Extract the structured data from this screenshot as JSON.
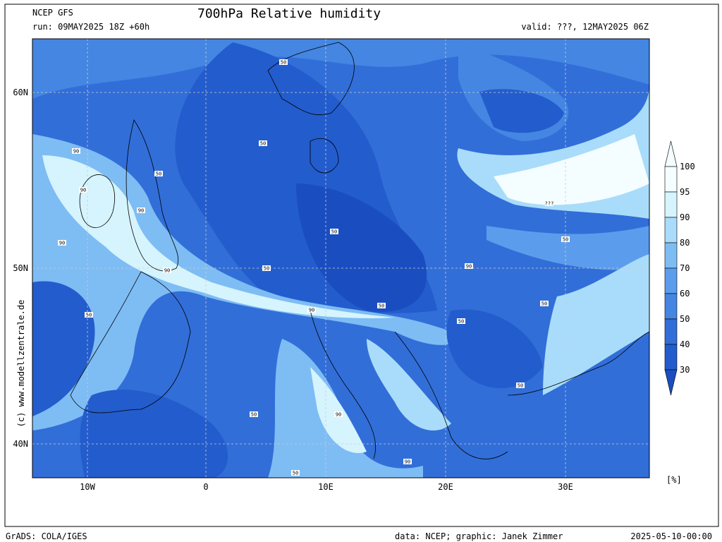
{
  "header": {
    "model": "NCEP GFS",
    "title": "700hPa Relative humidity",
    "run": "run: 09MAY2025 18Z +60h",
    "valid": "valid: ???, 12MAY2025 06Z"
  },
  "map": {
    "lat_labels": [
      "60N",
      "50N",
      "40N"
    ],
    "lon_labels": [
      "10W",
      "0",
      "10E",
      "20E",
      "30E"
    ],
    "contour_labels": [
      "50",
      "90",
      "50",
      "90",
      "50",
      "90",
      "50",
      "90",
      "50",
      "90",
      "50",
      "50",
      "90",
      "50",
      "???",
      "50",
      "90",
      "50",
      "50",
      "50",
      "90",
      "90",
      "50"
    ]
  },
  "colorbar": {
    "unit": "[%]",
    "levels": [
      {
        "label": "100",
        "color": "#f4fdff"
      },
      {
        "label": "95",
        "color": "#d6f4fe"
      },
      {
        "label": "90",
        "color": "#a8dcfa"
      },
      {
        "label": "80",
        "color": "#7ebcf4"
      },
      {
        "label": "70",
        "color": "#5c9cec"
      },
      {
        "label": "60",
        "color": "#4486e2"
      },
      {
        "label": "50",
        "color": "#326ed8"
      },
      {
        "label": "40",
        "color": "#235ccc"
      },
      {
        "label": "30",
        "color": "#1a4ec0"
      }
    ]
  },
  "watermark": "(c) www.modellzentrale.de",
  "footer": {
    "left": "GrADS: COLA/IGES",
    "data": "data: NCEP; graphic: Janek Zimmer",
    "date": "2025-05-10-00:00"
  }
}
